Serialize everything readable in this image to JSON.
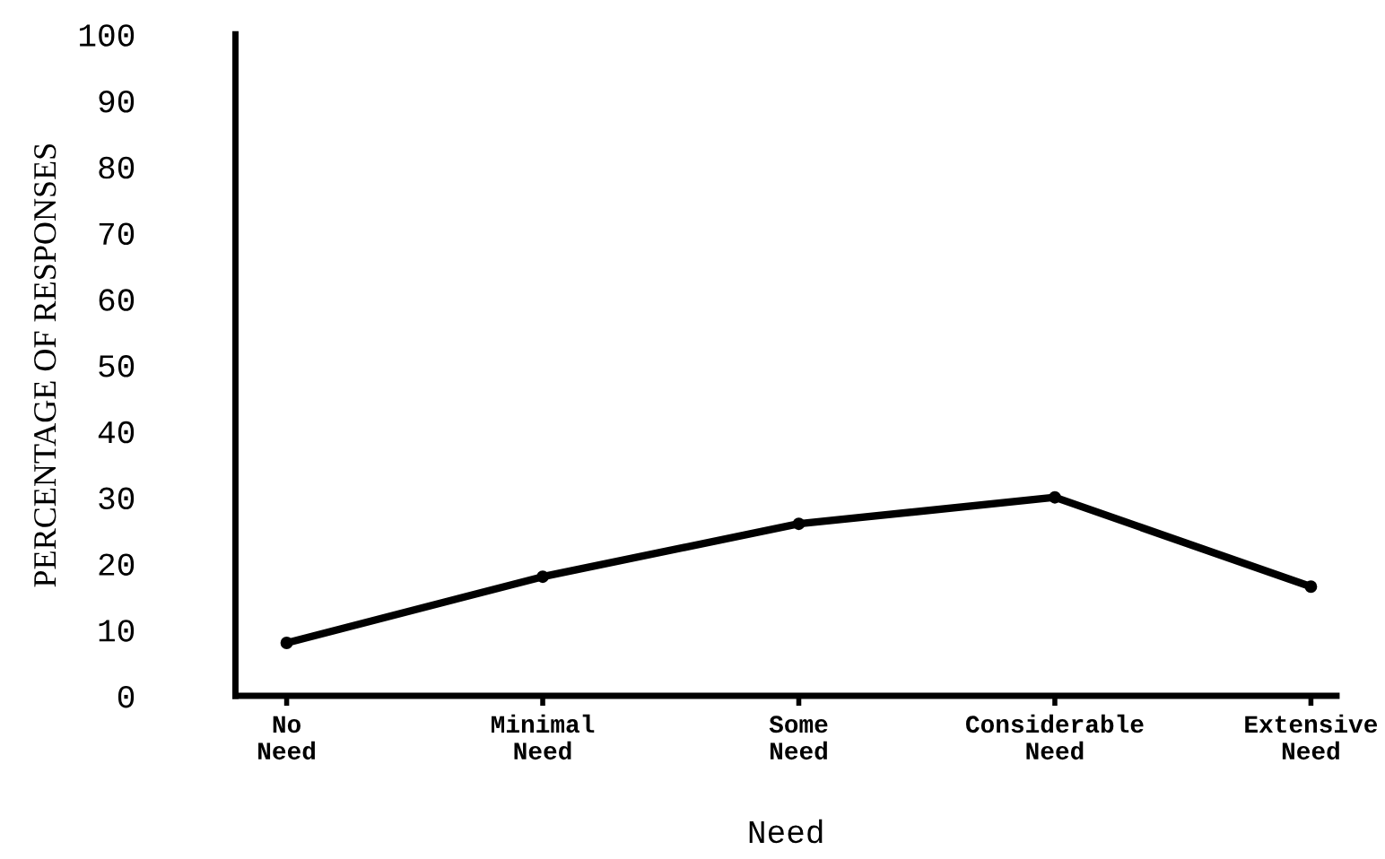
{
  "chart_data": {
    "type": "line",
    "xlabel": "Need",
    "ylabel": "PERCENTAGE OF RESPONSES",
    "categories": [
      "No\nNeed",
      "Minimal\nNeed",
      "Some\nNeed",
      "Considerable\nNeed",
      "Extensive\nNeed"
    ],
    "series": [
      {
        "color": "#000000",
        "values": [
          8,
          18,
          26,
          30,
          16.5
        ]
      }
    ],
    "ylim": [
      0,
      100
    ],
    "yticks": [
      0,
      10,
      20,
      30,
      40,
      50,
      60,
      70,
      80,
      90,
      100
    ],
    "marker": "circle",
    "line_style": "solid"
  }
}
